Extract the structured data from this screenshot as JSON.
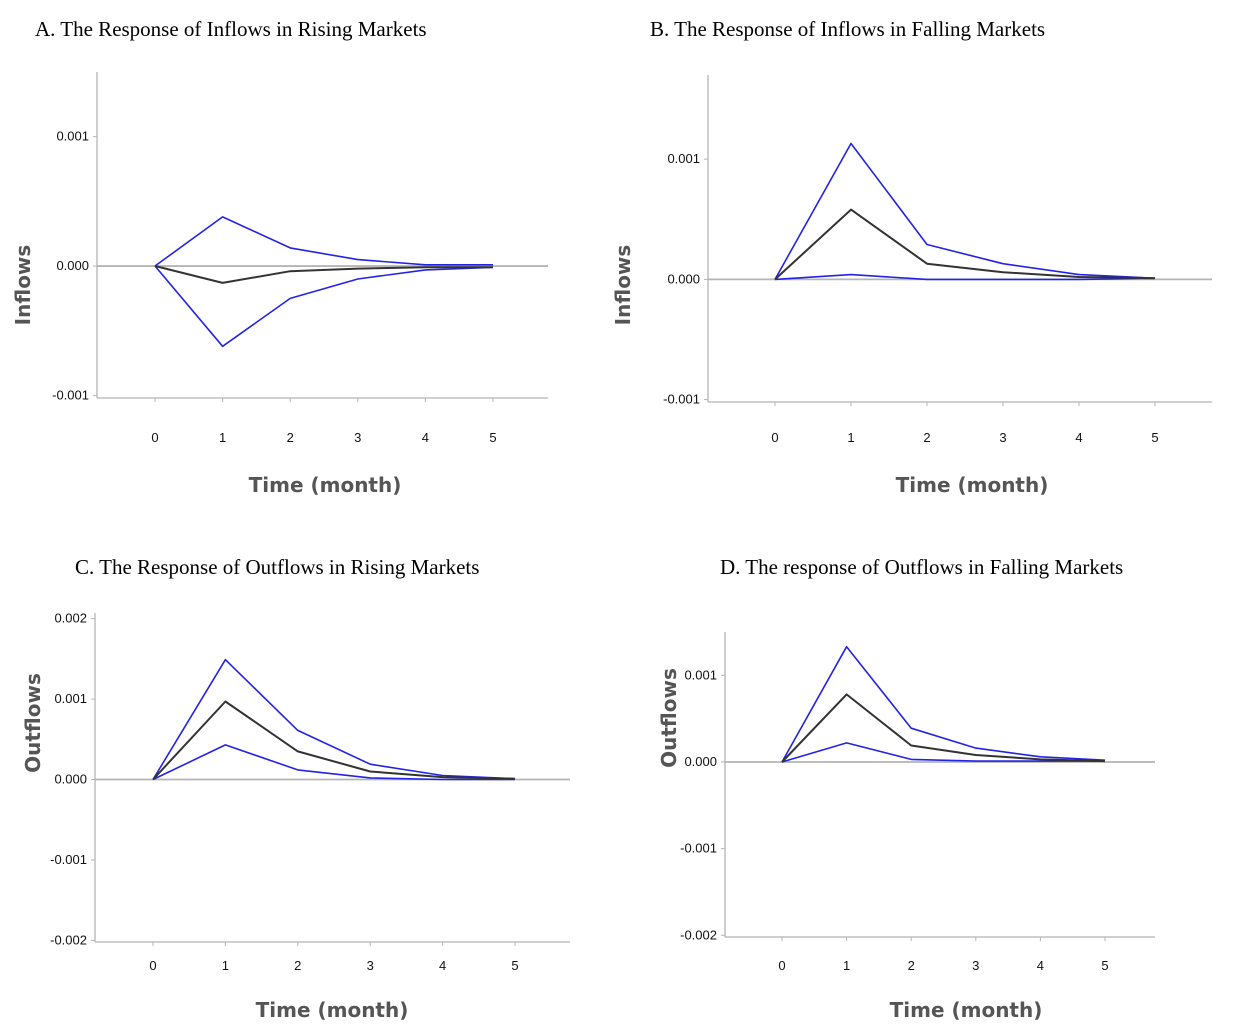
{
  "colors": {
    "band": "#2323e6",
    "estimate": "#333333",
    "axis": "#b5b5b5"
  },
  "chart_data": [
    {
      "type": "line",
      "title": "A. The Response of Inflows in Rising Markets",
      "xlabel": "Time (month)",
      "ylabel": "Inflows",
      "x": [
        0,
        1,
        2,
        3,
        4,
        5
      ],
      "x_tick_labels": [
        "0",
        "1",
        "2",
        "3",
        "4",
        "5"
      ],
      "y_ticks": [
        0.001,
        0.0,
        -0.001
      ],
      "y_tick_labels": [
        "0.001",
        "0.000",
        "-0.001"
      ],
      "ylim": [
        -0.00102,
        0.0015
      ],
      "series": [
        {
          "role": "upper",
          "values": [
            0,
            0.00038,
            0.00014,
            5e-05,
            1e-05,
            1e-05
          ]
        },
        {
          "role": "estimate",
          "values": [
            0,
            -0.00013,
            -4e-05,
            -2e-05,
            -1e-05,
            -1e-05
          ]
        },
        {
          "role": "lower",
          "values": [
            0,
            -0.00062,
            -0.00025,
            -0.0001,
            -3e-05,
            -1e-05
          ]
        }
      ]
    },
    {
      "type": "line",
      "title": "B. The Response of Inflows in Falling Markets",
      "xlabel": "Time (month)",
      "ylabel": "Inflows",
      "x": [
        0,
        1,
        2,
        3,
        4,
        5
      ],
      "x_tick_labels": [
        "0",
        "1",
        "2",
        "3",
        "4",
        "5"
      ],
      "y_ticks": [
        0.001,
        0.0,
        -0.001
      ],
      "y_tick_labels": [
        "0.001",
        "0.000",
        "-0.001"
      ],
      "ylim": [
        -0.00102,
        0.0017
      ],
      "series": [
        {
          "role": "upper",
          "values": [
            0,
            0.00113,
            0.00029,
            0.00013,
            4e-05,
            1e-05
          ]
        },
        {
          "role": "estimate",
          "values": [
            0,
            0.00058,
            0.00013,
            6e-05,
            2e-05,
            1e-05
          ]
        },
        {
          "role": "lower",
          "values": [
            0,
            4e-05,
            0.0,
            0.0,
            0.0,
            1e-05
          ]
        }
      ]
    },
    {
      "type": "line",
      "title": "C. The Response of Outflows in Rising Markets",
      "xlabel": "Time (month)",
      "ylabel": "Outflows",
      "x": [
        0,
        1,
        2,
        3,
        4,
        5
      ],
      "x_tick_labels": [
        "0",
        "1",
        "2",
        "3",
        "4",
        "5"
      ],
      "y_ticks": [
        0.002,
        0.001,
        0.0,
        -0.001,
        -0.002
      ],
      "y_tick_labels": [
        "0.002",
        "0.001",
        "0.000",
        "-0.001",
        "-0.002"
      ],
      "ylim": [
        -0.00202,
        0.00207
      ],
      "series": [
        {
          "role": "upper",
          "values": [
            0,
            0.00149,
            0.00061,
            0.00019,
            5e-05,
            1e-05
          ]
        },
        {
          "role": "estimate",
          "values": [
            0,
            0.00097,
            0.00035,
            0.0001,
            3e-05,
            1e-05
          ]
        },
        {
          "role": "lower",
          "values": [
            0,
            0.00043,
            0.00012,
            2e-05,
            0.0,
            0.0
          ]
        }
      ]
    },
    {
      "type": "line",
      "title": "D. The response of Outflows in Falling Markets",
      "xlabel": "Time (month)",
      "ylabel": "Outflows",
      "x": [
        0,
        1,
        2,
        3,
        4,
        5
      ],
      "x_tick_labels": [
        "0",
        "1",
        "2",
        "3",
        "4",
        "5"
      ],
      "y_ticks": [
        0.001,
        0.0,
        -0.001,
        -0.002
      ],
      "y_tick_labels": [
        "0.001",
        "0.000",
        "-0.001",
        "-0.002"
      ],
      "ylim": [
        -0.00202,
        0.0015
      ],
      "series": [
        {
          "role": "upper",
          "values": [
            0,
            0.00133,
            0.00039,
            0.00016,
            6e-05,
            2e-05
          ]
        },
        {
          "role": "estimate",
          "values": [
            0,
            0.00078,
            0.00019,
            8e-05,
            3e-05,
            1e-05
          ]
        },
        {
          "role": "lower",
          "values": [
            0,
            0.00022,
            3e-05,
            1e-05,
            1e-05,
            1e-05
          ]
        }
      ]
    }
  ]
}
